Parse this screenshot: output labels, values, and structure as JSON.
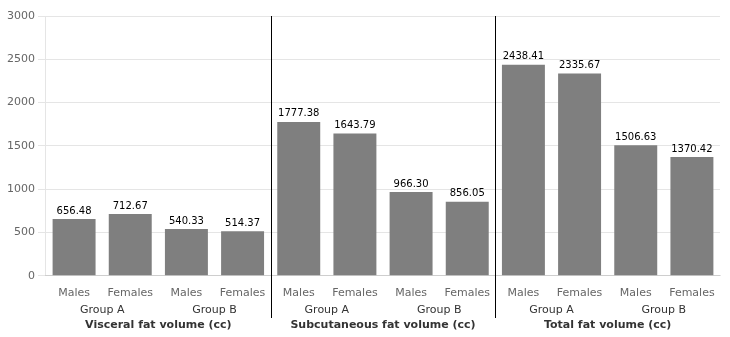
{
  "chart_data": {
    "type": "bar",
    "categories": [
      [
        "Visceral fat volume (cc)",
        "Group A",
        "Males"
      ],
      [
        "Visceral fat volume (cc)",
        "Group A",
        "Females"
      ],
      [
        "Visceral fat volume (cc)",
        "Group B",
        "Males"
      ],
      [
        "Visceral fat volume (cc)",
        "Group B",
        "Females"
      ],
      [
        "Subcutaneous fat volume (cc)",
        "Group A",
        "Males"
      ],
      [
        "Subcutaneous fat volume (cc)",
        "Group A",
        "Females"
      ],
      [
        "Subcutaneous fat volume (cc)",
        "Group B",
        "Males"
      ],
      [
        "Subcutaneous fat volume (cc)",
        "Group B",
        "Females"
      ],
      [
        "Total fat volume (cc)",
        "Group A",
        "Males"
      ],
      [
        "Total fat volume (cc)",
        "Group A",
        "Females"
      ],
      [
        "Total fat volume (cc)",
        "Group B",
        "Males"
      ],
      [
        "Total fat volume (cc)",
        "Group B",
        "Females"
      ]
    ],
    "values": [
      656.48,
      712.67,
      540.33,
      514.37,
      1777.38,
      1643.79,
      966.3,
      856.05,
      2438.41,
      2335.67,
      1506.63,
      1370.42
    ],
    "value_labels": [
      "656.48",
      "712.67",
      "540.33",
      "514.37",
      "1777.38",
      "1643.79",
      "966.30",
      "856.05",
      "2438.41",
      "2335.67",
      "1506.63",
      "1370.42"
    ],
    "color": "#7f7f7f",
    "ylim": [
      0,
      3000
    ],
    "yticks": [
      0,
      500,
      1000,
      1500,
      2000,
      2500,
      3000
    ],
    "grid": true,
    "data_labels": true
  }
}
